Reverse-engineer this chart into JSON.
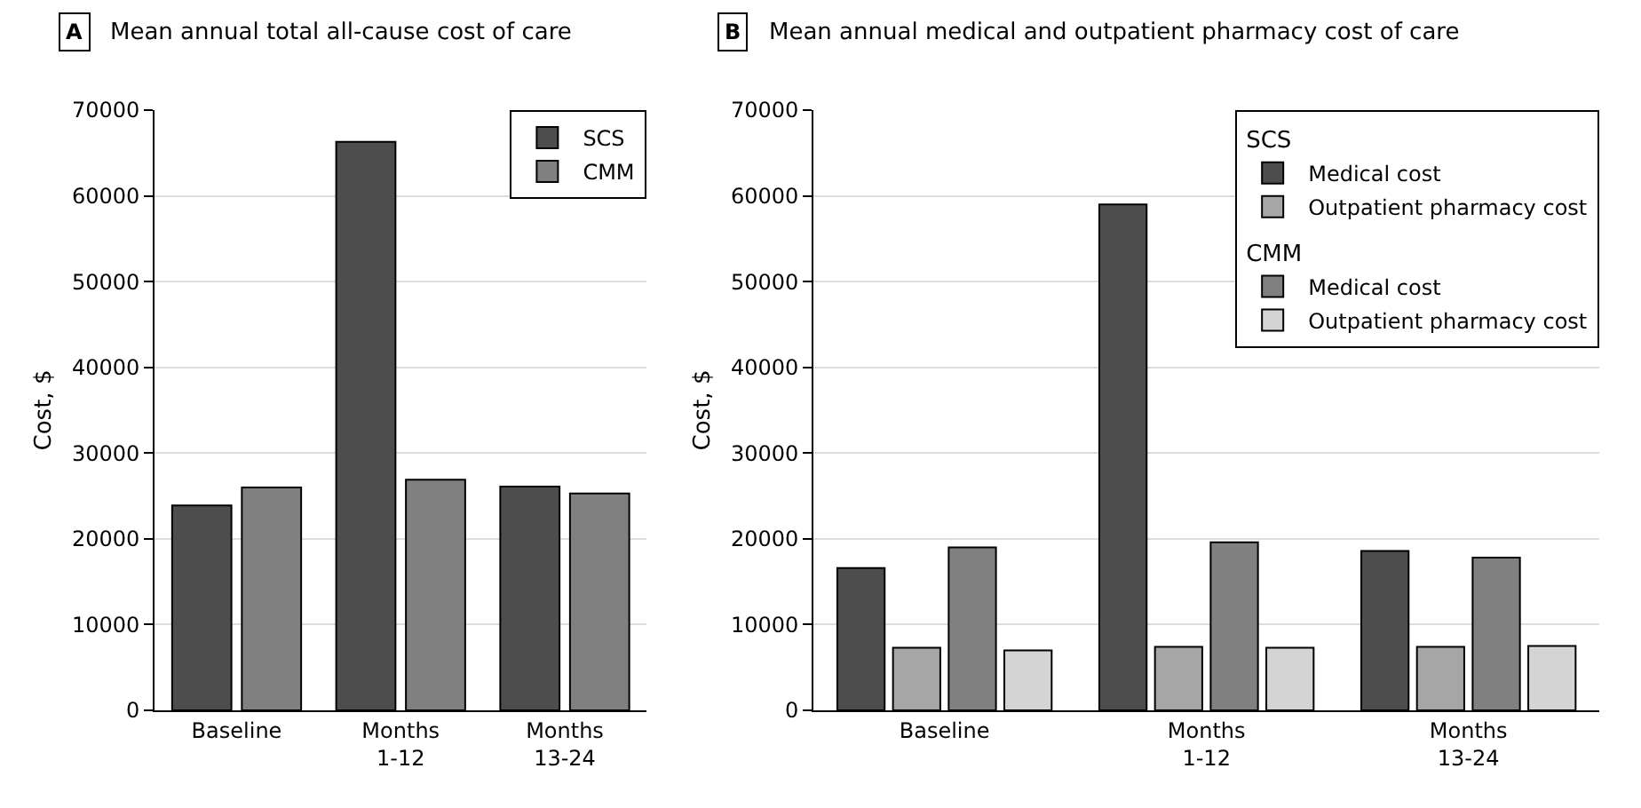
{
  "chart_data": [
    {
      "type": "bar",
      "title": "Mean annual total all-cause cost of care",
      "annotations": [
        "A"
      ],
      "ylabel": "Cost, $",
      "categories": [
        "Baseline",
        "Months\n1-12",
        "Months\n13-24"
      ],
      "series": [
        {
          "name": "SCS",
          "color": "#4d4d4d",
          "values": [
            23900,
            66300,
            26100
          ]
        },
        {
          "name": "CMM",
          "color": "#808080",
          "values": [
            26000,
            26900,
            25300
          ]
        }
      ],
      "ylim": [
        0,
        70000
      ],
      "yticks": [
        0,
        10000,
        20000,
        30000,
        40000,
        50000,
        60000,
        70000
      ],
      "grid": "y",
      "legend": "top right"
    },
    {
      "type": "bar",
      "title": "Mean annual medical and outpatient pharmacy cost of care",
      "annotations": [
        "B",
        "SCS",
        "CMM"
      ],
      "ylabel": "Cost, $",
      "categories": [
        "Baseline",
        "Months\n1-12",
        "Months\n13-24"
      ],
      "series": [
        {
          "name": "Medical cost",
          "color": "#4d4d4d",
          "values": [
            16600,
            59000,
            18600
          ]
        },
        {
          "name": "Outpatient pharmacy cost",
          "color": "#a6a6a6",
          "values": [
            7300,
            7400,
            7400
          ]
        },
        {
          "name": "Medical cost",
          "color": "#808080",
          "values": [
            19000,
            19600,
            17800
          ]
        },
        {
          "name": "Outpatient pharmacy cost",
          "color": "#d4d4d4",
          "values": [
            7000,
            7300,
            7500
          ]
        }
      ],
      "ylim": [
        0,
        70000
      ],
      "yticks": [
        0,
        10000,
        20000,
        30000,
        40000,
        50000,
        60000,
        70000
      ],
      "grid": "y",
      "legend": "top right"
    }
  ]
}
